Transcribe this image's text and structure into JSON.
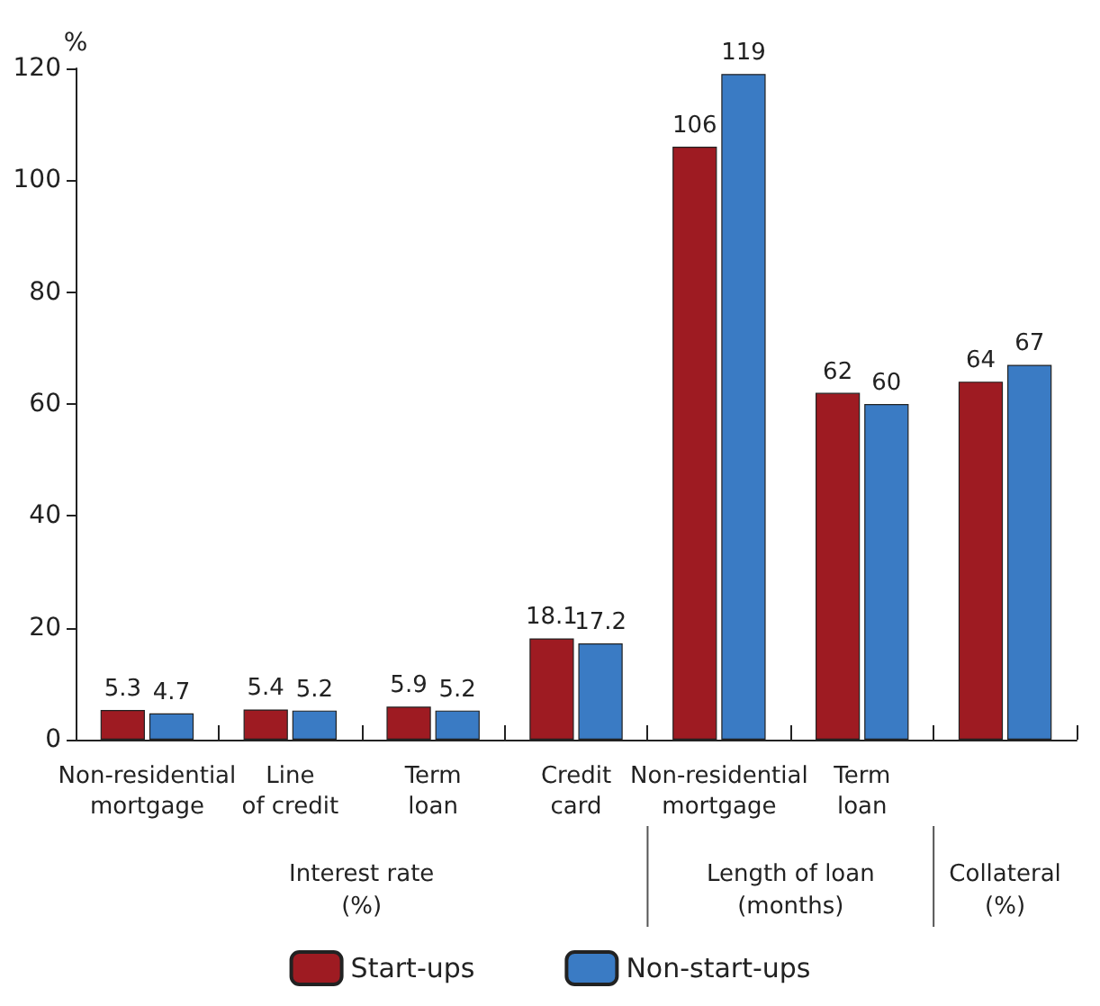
{
  "chart_data": {
    "type": "bar",
    "ylabel": "%",
    "categories": [
      "Non-residential\nmortgage",
      "Line\nof credit",
      "Term\nloan",
      "Credit\ncard",
      "Non-residential\nmortgage",
      "Term\nloan",
      null
    ],
    "series": [
      {
        "name": "Start-ups",
        "color": "#9e1b22",
        "values": [
          5.3,
          5.4,
          5.9,
          18.1,
          106,
          62,
          64
        ]
      },
      {
        "name": "Non-start-ups",
        "color": "#3a7bc4",
        "values": [
          4.7,
          5.2,
          5.2,
          17.2,
          119,
          60,
          67
        ]
      }
    ],
    "ylim": [
      0,
      120
    ],
    "yticks": [
      0,
      20,
      40,
      60,
      80,
      100,
      120
    ],
    "data_labels": true,
    "legend": "bottom",
    "grid": false,
    "annotations": [
      "Interest rate\n(%)",
      "Length of loan\n(months)",
      "Collateral\n(%)"
    ]
  }
}
